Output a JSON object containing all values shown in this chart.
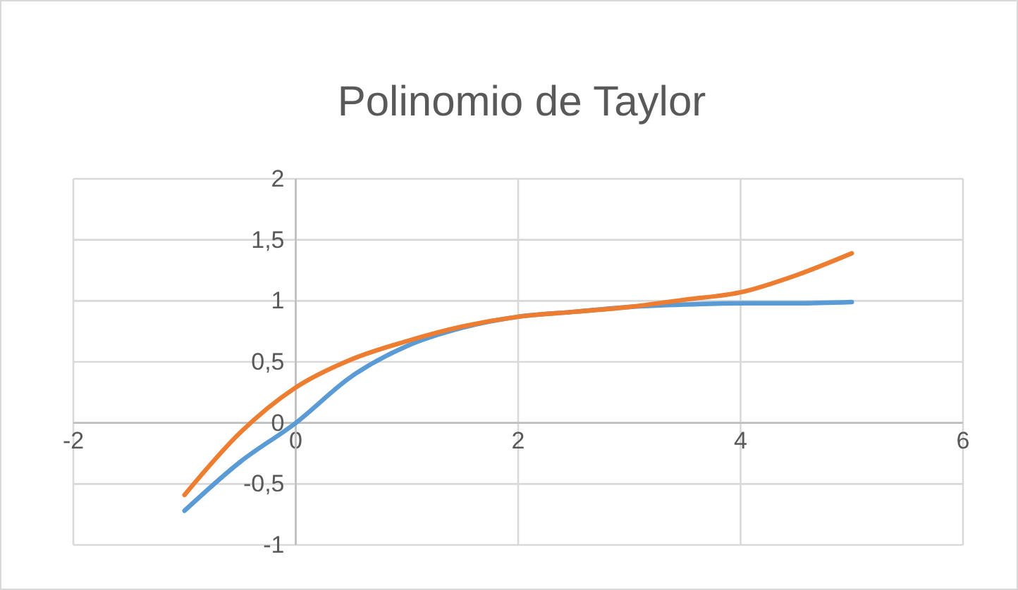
{
  "chart_data": {
    "type": "line",
    "title": "Polinomio de Taylor",
    "x": [
      -1,
      -0.5,
      0,
      0.5,
      1,
      1.5,
      2,
      2.5,
      3,
      3.5,
      4,
      4.5,
      5
    ],
    "series": [
      {
        "color": "#5b9bd5",
        "values": [
          -0.72,
          -0.32,
          0,
          0.38,
          0.63,
          0.78,
          0.87,
          0.91,
          0.95,
          0.97,
          0.98,
          0.98,
          0.99
        ]
      },
      {
        "color": "#ed7d31",
        "values": [
          -0.59,
          -0.08,
          0.29,
          0.52,
          0.67,
          0.79,
          0.87,
          0.91,
          0.95,
          1.01,
          1.07,
          1.21,
          1.39
        ]
      }
    ],
    "xlim": [
      -2,
      6
    ],
    "xticks": [
      -2,
      0,
      2,
      4,
      6
    ],
    "ylim": [
      -1,
      2
    ],
    "yticks": [
      {
        "value": -1,
        "label": "-1"
      },
      {
        "value": -0.5,
        "label": "-0,5"
      },
      {
        "value": 0,
        "label": "0"
      },
      {
        "value": 0.5,
        "label": "0,5"
      },
      {
        "value": 1,
        "label": "1"
      },
      {
        "value": 1.5,
        "label": "1,5"
      },
      {
        "value": 2,
        "label": "2"
      }
    ],
    "grid": true,
    "line_style": "solid"
  }
}
